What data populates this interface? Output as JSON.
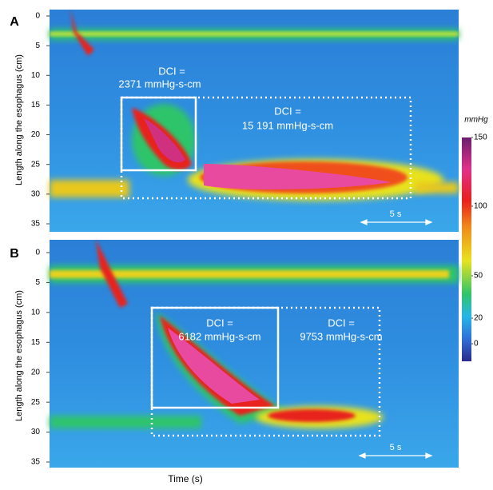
{
  "figure": {
    "y_label": "Length along the esophagus (cm)",
    "x_label": "Time (s)",
    "panels": [
      {
        "label": "A",
        "yticks": [
          0,
          5,
          10,
          15,
          20,
          25,
          30,
          35
        ],
        "annotations": [
          {
            "title": "DCI =",
            "value": "2371 mmHg-s-cm"
          },
          {
            "title": "DCI =",
            "value": "15 191 mmHg-s-cm"
          }
        ],
        "scale_bar": "5 s"
      },
      {
        "label": "B",
        "yticks": [
          0,
          5,
          10,
          15,
          20,
          25,
          30,
          35
        ],
        "annotations": [
          {
            "title": "DCI =",
            "value": "6182 mmHg-s-cm"
          },
          {
            "title": "DCI =",
            "value": "9753 mmHg-s-cm"
          }
        ],
        "scale_bar": "5 s"
      }
    ],
    "colorbar": {
      "unit": "mmHg",
      "ticks": [
        150,
        100,
        50,
        20,
        0
      ]
    }
  }
}
